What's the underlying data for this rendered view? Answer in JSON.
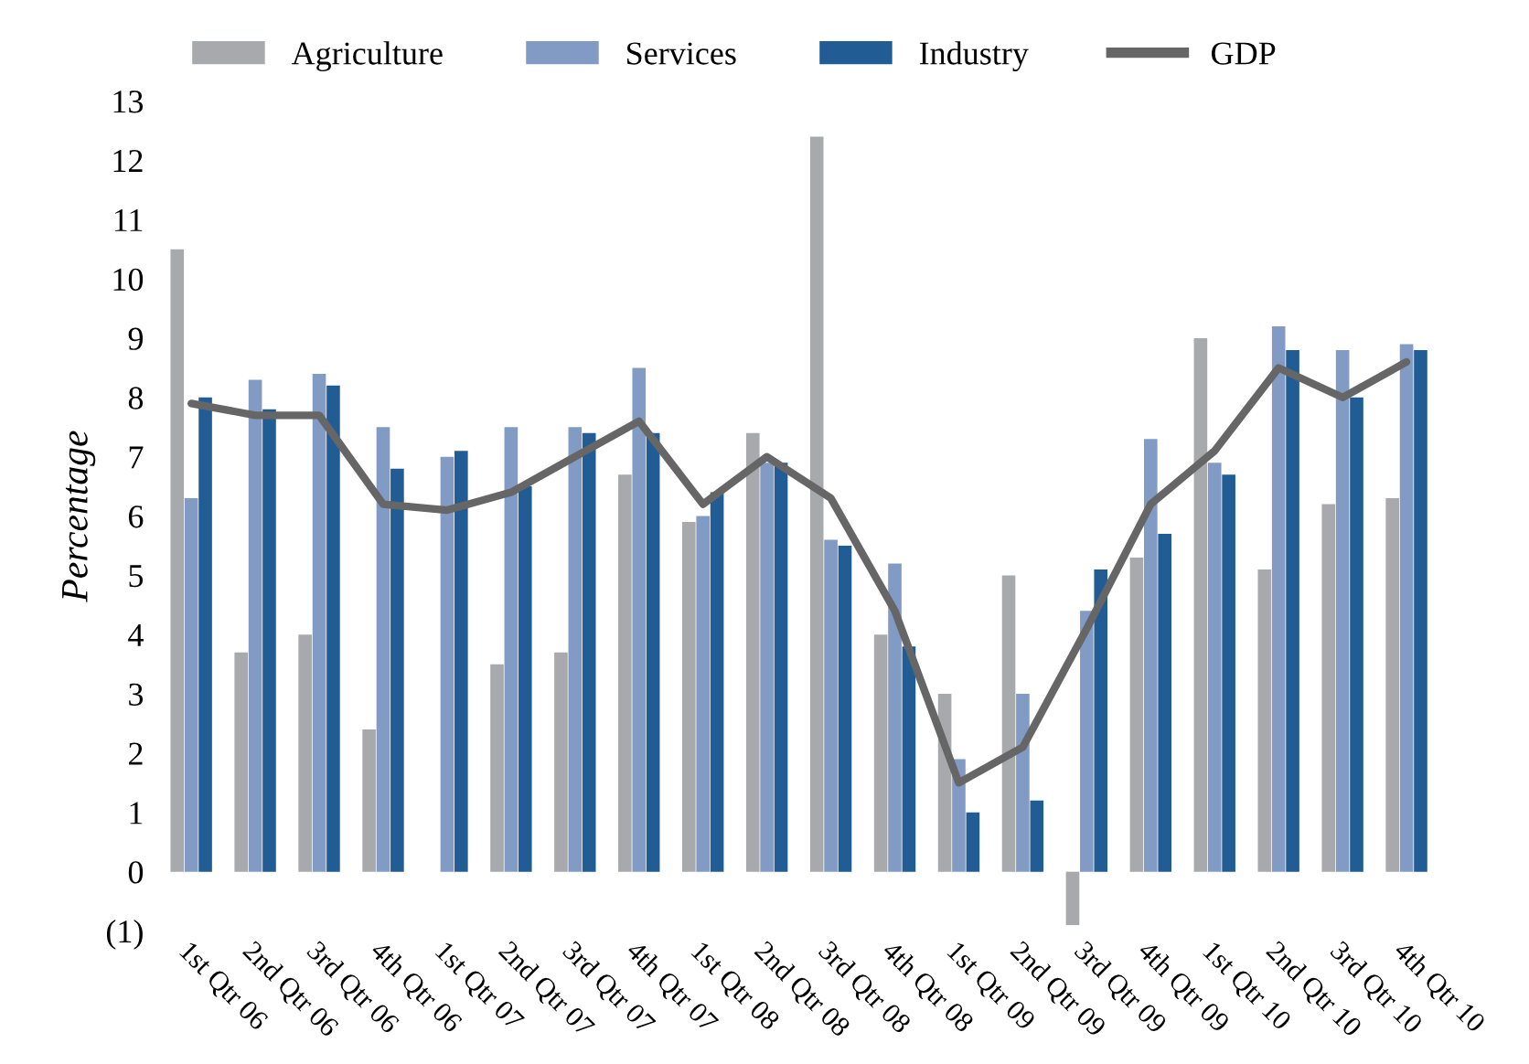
{
  "chart_data": {
    "type": "bar",
    "ylabel": "Percentage",
    "categories": [
      "1st Qtr 06",
      "2nd Qtr 06",
      "3rd Qtr 06",
      "4th Qtr 06",
      "1st Qtr 07",
      "2nd Qtr 07",
      "3rd Qtr 07",
      "4th Qtr 07",
      "1st Qtr 08",
      "2nd Qtr 08",
      "3rd Qtr 08",
      "4th Qtr 08",
      "1st Qtr 09",
      "2nd Qtr 09",
      "3rd Qtr 09",
      "4th Qtr 09",
      "1st Qtr 10",
      "2nd Qtr 10",
      "3rd Qtr 10",
      "4th Qtr 10"
    ],
    "series": [
      {
        "name": "Agriculture",
        "color": "#a7a9ac",
        "values": [
          10.5,
          3.7,
          4.0,
          2.4,
          null,
          3.5,
          3.7,
          6.7,
          5.9,
          7.4,
          12.4,
          4.0,
          3.0,
          5.0,
          -0.9,
          5.3,
          9.0,
          5.1,
          6.2,
          6.3
        ]
      },
      {
        "name": "Services",
        "color": "#819bc4",
        "values": [
          6.3,
          8.3,
          8.4,
          7.5,
          7.0,
          7.5,
          7.5,
          8.5,
          6.0,
          6.9,
          5.6,
          5.2,
          1.9,
          3.0,
          4.4,
          7.3,
          6.9,
          9.2,
          8.8,
          8.9
        ]
      },
      {
        "name": "Industry",
        "color": "#215d94",
        "values": [
          8.0,
          7.8,
          8.2,
          6.8,
          7.1,
          6.5,
          7.4,
          7.4,
          6.4,
          6.9,
          5.5,
          3.8,
          1.0,
          1.2,
          5.1,
          5.7,
          6.7,
          8.8,
          8.0,
          8.8
        ]
      },
      {
        "name": "GDP",
        "type": "line",
        "color": "#666666",
        "values": [
          7.9,
          7.7,
          7.7,
          6.2,
          6.1,
          6.4,
          7.0,
          7.6,
          6.2,
          7.0,
          6.3,
          4.4,
          1.5,
          2.1,
          4.1,
          6.2,
          7.1,
          8.5,
          8.0,
          8.6
        ]
      }
    ],
    "ylim": [
      -1,
      13
    ],
    "yticks": [
      {
        "value": -1,
        "label": "(1)"
      },
      0,
      1,
      2,
      3,
      4,
      5,
      6,
      7,
      8,
      9,
      10,
      11,
      12,
      13
    ],
    "grid": false,
    "legend": "top"
  }
}
